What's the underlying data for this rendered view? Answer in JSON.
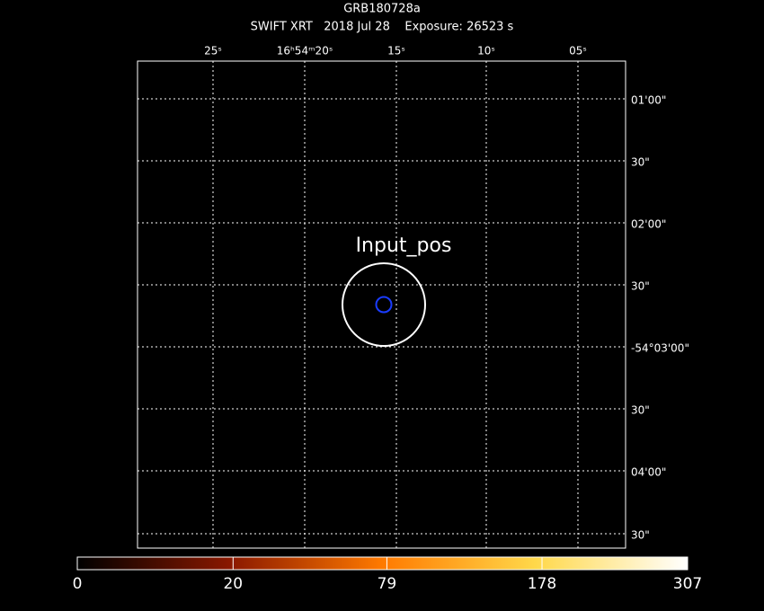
{
  "header": {
    "title": "GRB180728a",
    "subtitle": "SWIFT XRT   2018 Jul 28    Exposure: 26523 s"
  },
  "ra_labels": [
    "25ˢ",
    "16ʰ54ᵐ20ˢ",
    "15ˢ",
    "10ˢ",
    "05ˢ"
  ],
  "dec_labels": [
    "01'00\"",
    "30\"",
    "02'00\"",
    "30\"",
    "-54°03'00\"",
    "30\"",
    "04'00\"",
    "30\""
  ],
  "annotation": "Input_pos",
  "colorbar": {
    "scale": "sqrt",
    "ticks": [
      0,
      20,
      79,
      178,
      307
    ]
  }
}
